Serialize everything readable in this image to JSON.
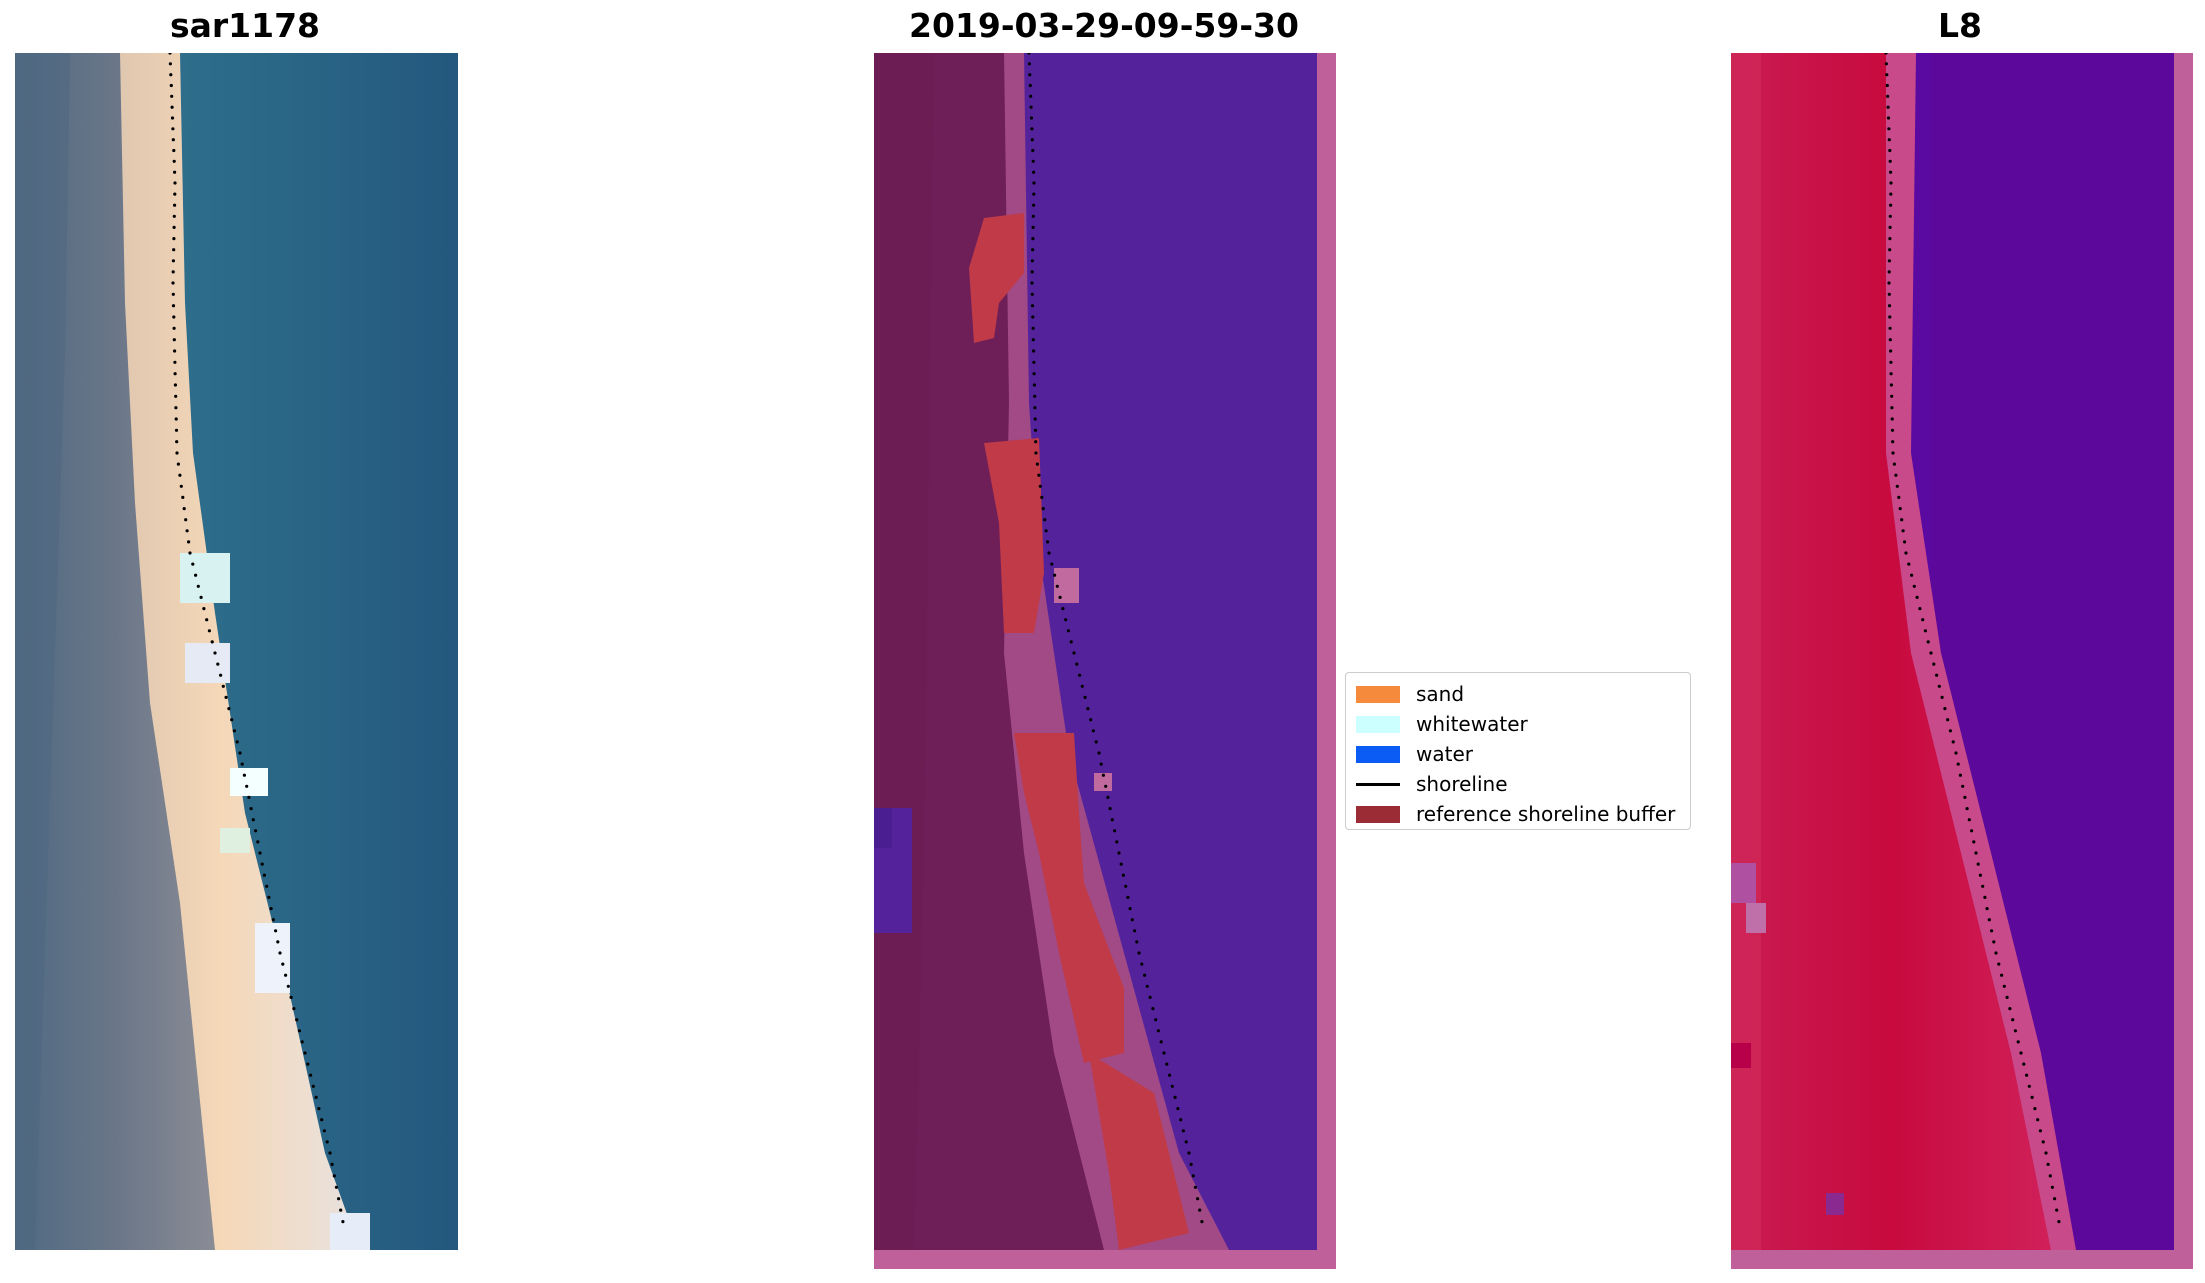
{
  "panels": {
    "left_title": "sar1178",
    "middle_title": "2019-03-29-09-59-30",
    "right_title": "L8"
  },
  "legend": {
    "items": [
      {
        "label": "sand",
        "color": "#f58a3c",
        "icon": "patch"
      },
      {
        "label": "whitewater",
        "color": "#ccffff",
        "icon": "patch"
      },
      {
        "label": "water",
        "color": "#0a5cf5",
        "icon": "patch"
      },
      {
        "label": "shoreline",
        "color": "#000000",
        "icon": "line"
      },
      {
        "label": "reference shoreline buffer",
        "color": "#9b2c36",
        "icon": "patch"
      }
    ]
  },
  "colors": {
    "rgb_water": "#2b6a88",
    "rgb_land": "#5d7086",
    "rgb_sand": "#f2d2b4",
    "class_water": "#54239c",
    "class_land": "#6e1f58",
    "class_border": "#c0609a",
    "class_buffer": "#c03a48",
    "l8_land": "#cc1a4c",
    "l8_water": "#5a0aa0",
    "shoreline_dots": "#000000"
  }
}
